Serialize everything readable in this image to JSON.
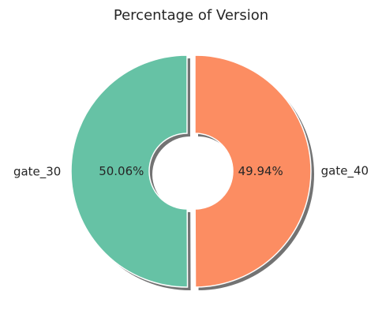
{
  "chart_data": {
    "type": "pie",
    "title": "Percentage of Version",
    "categories": [
      "gate_30",
      "gate_40"
    ],
    "values": [
      50.06,
      49.94
    ],
    "percent_labels": [
      "50.06%",
      "49.94%"
    ],
    "colors": [
      "#66c2a5",
      "#fc8d62"
    ],
    "donut": true,
    "exploded": true,
    "shadow": true,
    "legend": "none"
  }
}
